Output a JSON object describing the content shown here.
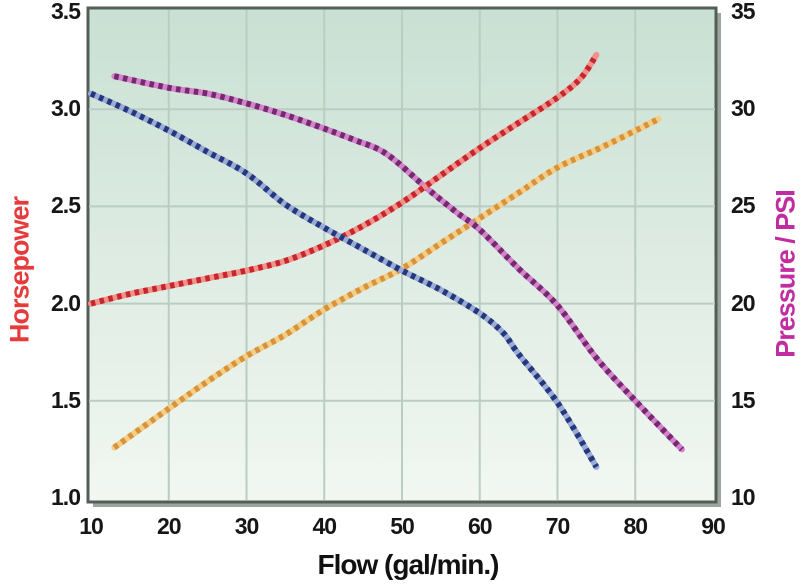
{
  "chart_data": {
    "type": "line",
    "title": "",
    "xlabel": "Flow (gal/min.)",
    "ylabel_left": "Horsepower",
    "ylabel_right": "Pressure / PSI",
    "xlim": [
      10,
      90
    ],
    "ylim_left": [
      1.0,
      3.5
    ],
    "ylim_right": [
      10,
      35
    ],
    "grid": true,
    "legend": "none",
    "x_tick_labels": [
      "10",
      "20",
      "30",
      "40",
      "50",
      "60",
      "70",
      "80",
      "90"
    ],
    "left_tick_labels": [
      "3.5",
      "3.0",
      "2.5",
      "2.0",
      "1.5",
      "1.0"
    ],
    "right_tick_labels": [
      "35",
      "30",
      "25",
      "20",
      "15",
      "10"
    ],
    "series": [
      {
        "name": "pressure-curve-orange",
        "axis": "right",
        "color_dark": "#d8923a",
        "color_light": "#f4cd86",
        "points": [
          [
            13,
            12.6
          ],
          [
            20,
            14.6
          ],
          [
            25,
            16.0
          ],
          [
            30,
            17.3
          ],
          [
            35,
            18.4
          ],
          [
            40,
            19.7
          ],
          [
            45,
            20.8
          ],
          [
            50,
            21.8
          ],
          [
            55,
            23.1
          ],
          [
            60,
            24.4
          ],
          [
            65,
            25.7
          ],
          [
            70,
            27.0
          ],
          [
            76,
            28.1
          ],
          [
            83,
            29.5
          ]
        ]
      },
      {
        "name": "pressure-curve-purple",
        "axis": "right",
        "color_dark": "#76296f",
        "color_light": "#d283cc",
        "points": [
          [
            13,
            31.7
          ],
          [
            20,
            31.1
          ],
          [
            25,
            30.8
          ],
          [
            30,
            30.3
          ],
          [
            35,
            29.7
          ],
          [
            40,
            29.0
          ],
          [
            44,
            28.4
          ],
          [
            48,
            27.7
          ],
          [
            53,
            26.0
          ],
          [
            57,
            24.7
          ],
          [
            60,
            23.8
          ],
          [
            65,
            21.8
          ],
          [
            70,
            19.9
          ],
          [
            75,
            17.2
          ],
          [
            80,
            15.0
          ],
          [
            86,
            12.5
          ]
        ]
      },
      {
        "name": "horsepower-curve-red",
        "axis": "left",
        "color_dark": "#c8262e",
        "color_light": "#f2918a",
        "points": [
          [
            10,
            2.0
          ],
          [
            15,
            2.05
          ],
          [
            20,
            2.09
          ],
          [
            25,
            2.13
          ],
          [
            30,
            2.17
          ],
          [
            35,
            2.22
          ],
          [
            40,
            2.3
          ],
          [
            45,
            2.4
          ],
          [
            50,
            2.52
          ],
          [
            55,
            2.66
          ],
          [
            60,
            2.8
          ],
          [
            65,
            2.93
          ],
          [
            70,
            3.06
          ],
          [
            73,
            3.16
          ],
          [
            75,
            3.28
          ]
        ]
      },
      {
        "name": "pressure-curve-blue",
        "axis": "right",
        "color_dark": "#25377e",
        "color_light": "#9aacd4",
        "points": [
          [
            10,
            30.8
          ],
          [
            15,
            29.9
          ],
          [
            20,
            28.9
          ],
          [
            25,
            27.8
          ],
          [
            30,
            26.7
          ],
          [
            35,
            25.1
          ],
          [
            40,
            23.9
          ],
          [
            45,
            22.8
          ],
          [
            50,
            21.7
          ],
          [
            55,
            20.7
          ],
          [
            60,
            19.5
          ],
          [
            63,
            18.5
          ],
          [
            65,
            17.4
          ],
          [
            70,
            14.9
          ],
          [
            75,
            11.6
          ]
        ]
      }
    ]
  },
  "colors": {
    "plot_bg_top": "#c9e0d3",
    "plot_bg_bottom": "#f2f7f2",
    "gridline": "#b9cdc1",
    "frame": "#545e58",
    "frame_shadow": "#9ca69e",
    "tick_text": "#161616",
    "x_title_text": "#111111",
    "left_title_text": "#e63a3c",
    "right_title_text": "#c12da1"
  }
}
